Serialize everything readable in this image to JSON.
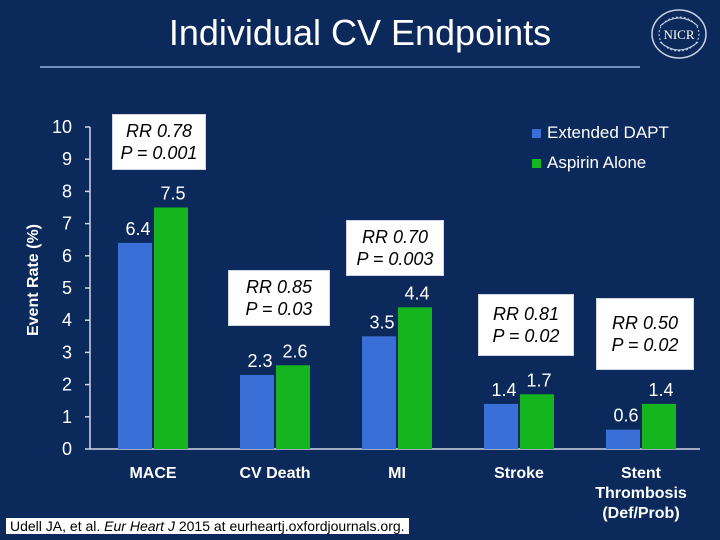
{
  "title": "Individual CV Endpoints",
  "logo_text": "NICR",
  "citation": {
    "prefix": "Udell JA, et al. ",
    "journal": "Eur Heart J",
    "suffix": " 2015 at eurheartj.oxfordjournals.org."
  },
  "chart_data": {
    "type": "bar",
    "ylabel": "Event Rate (%)",
    "ylim": [
      0,
      10
    ],
    "yticks": [
      0,
      1,
      2,
      3,
      4,
      5,
      6,
      7,
      8,
      9,
      10
    ],
    "categories": [
      "MACE",
      "CV Death",
      "MI",
      "Stroke",
      "Stent Thrombosis (Def/Prob)"
    ],
    "series": [
      {
        "name": "Extended DAPT",
        "color": "#3a6fd8",
        "values": [
          6.4,
          2.3,
          3.5,
          1.4,
          0.6
        ]
      },
      {
        "name": "Aspirin Alone",
        "color": "#14b51e",
        "values": [
          7.5,
          2.6,
          4.4,
          1.7,
          1.4
        ]
      }
    ],
    "annotations": [
      {
        "rr": "RR 0.78",
        "p": "P = 0.001"
      },
      {
        "rr": "RR 0.85",
        "p": "P = 0.03"
      },
      {
        "rr": "RR 0.70",
        "p": "P = 0.003"
      },
      {
        "rr": "RR 0.81",
        "p": "P = 0.02"
      },
      {
        "rr": "RR 0.50",
        "p": "P = 0.02"
      }
    ],
    "legend_position": "top-right",
    "grid": false
  }
}
